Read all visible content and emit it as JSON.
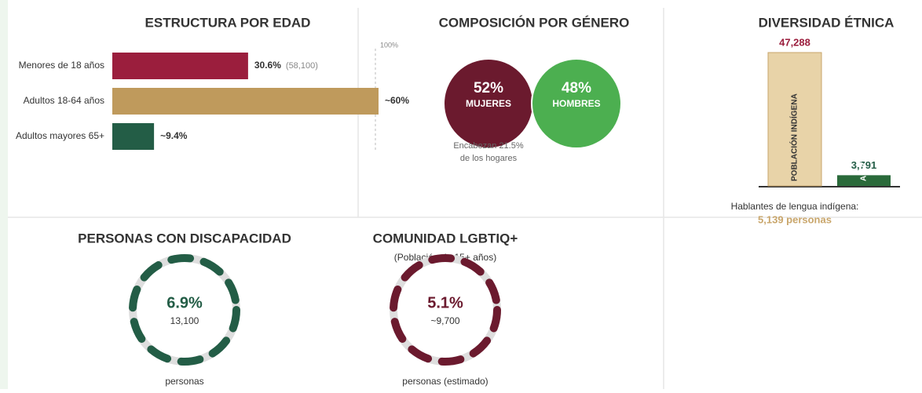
{
  "age": {
    "title": "ESTRUCTURA POR EDAD",
    "scale_label": "100%",
    "scale_max": 100,
    "rows": [
      {
        "label": "Menores de 18 años",
        "value": 30.6,
        "value_label": "30.6%",
        "note": "(58,100)",
        "color": "#9b1e3d"
      },
      {
        "label": "Adultos 18-64 años",
        "value": 60,
        "value_label": "~60%",
        "color": "#bf9a5c"
      },
      {
        "label": "Adultos mayores 65+",
        "value": 9.4,
        "value_label": "~9.4%",
        "color": "#235d46"
      }
    ]
  },
  "gender": {
    "title": "COMPOSICIÓN POR GÉNERO",
    "women": {
      "value_label": "52%",
      "name": "MUJERES",
      "color": "#6b1a2e"
    },
    "men": {
      "value_label": "48%",
      "name": "HOMBRES",
      "color": "#4caf50"
    },
    "note": [
      "Encabezan 21.5%",
      "de los hogares"
    ]
  },
  "ethnic": {
    "title": "DIVERSIDAD ÉTNICA",
    "bars": [
      {
        "name": "POBLACIÓN INDÍGENA",
        "value": 47288,
        "value_label": "47,288",
        "color": "#e8d3a8",
        "label_color": "#9b1e3d"
      },
      {
        "name": "AFROMEXICANA",
        "value": 3791,
        "value_label": "3,791",
        "color": "#2a6a3a",
        "label_color": "#235d46"
      }
    ],
    "footer": "Hablantes de lengua indígena:",
    "footer_value": "5,139 personas"
  },
  "disability": {
    "title": "PERSONAS CON DISCAPACIDAD",
    "value_label": "6.9%",
    "count": "13,100",
    "caption": "personas",
    "color": "#235d46"
  },
  "lgbt": {
    "title": "COMUNIDAD LGBTIQ+",
    "subtitle": "(Población de 15+ años)",
    "value_label": "5.1%",
    "count": "~9,700",
    "caption": "personas (estimado)",
    "color": "#6b1a2e"
  }
}
